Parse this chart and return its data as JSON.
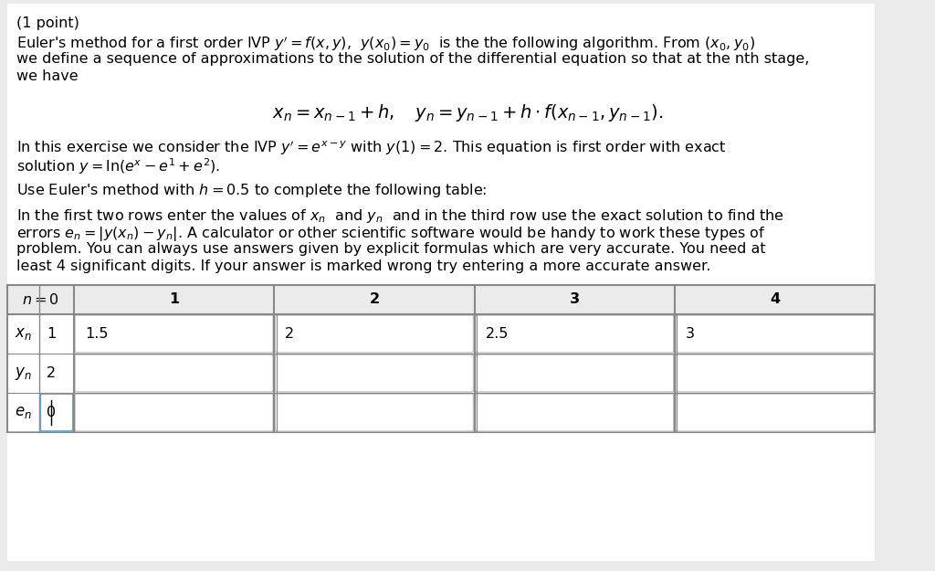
{
  "bg_color": "#ebebeb",
  "content_bg": "#ffffff",
  "font_size_main": 11.5,
  "font_size_formula": 13,
  "table_header_labels": [
    "n = 0",
    "1",
    "2",
    "3",
    "4"
  ],
  "xn_values": [
    "1",
    "1.5",
    "2",
    "2.5",
    "3"
  ],
  "yn_values": [
    "2",
    "",
    "",
    "",
    ""
  ],
  "en_values": [
    "0",
    "",
    "",
    "",
    ""
  ],
  "input_box_color": "#e8f2fb",
  "input_box_edge": "#6aaad4",
  "cell_box_color": "#f0f0f0",
  "cell_box_edge": "#c0c0c0",
  "table_border": "#888888",
  "header_bg": "#ebebeb"
}
